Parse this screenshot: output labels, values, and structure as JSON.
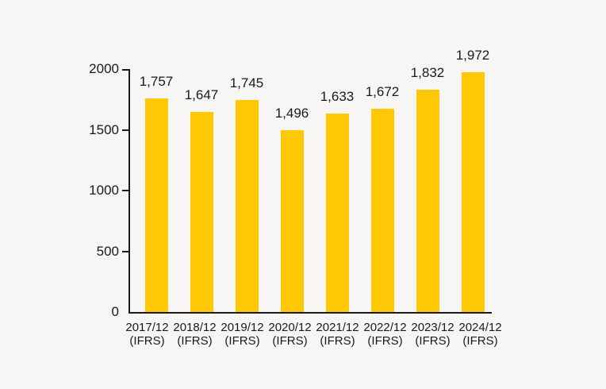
{
  "chart_data": {
    "type": "bar",
    "title": "",
    "xlabel": "",
    "ylabel": "",
    "categories": [
      {
        "period": "2017/12",
        "basis": "(IFRS)"
      },
      {
        "period": "2018/12",
        "basis": "(IFRS)"
      },
      {
        "period": "2019/12",
        "basis": "(IFRS)"
      },
      {
        "period": "2020/12",
        "basis": "(IFRS)"
      },
      {
        "period": "2021/12",
        "basis": "(IFRS)"
      },
      {
        "period": "2022/12",
        "basis": "(IFRS)"
      },
      {
        "period": "2023/12",
        "basis": "(IFRS)"
      },
      {
        "period": "2024/12",
        "basis": "(IFRS)"
      }
    ],
    "values": [
      1757,
      1647,
      1745,
      1496,
      1633,
      1672,
      1832,
      1972
    ],
    "value_labels": [
      "1,757",
      "1,647",
      "1,745",
      "1,496",
      "1,633",
      "1,672",
      "1,832",
      "1,972"
    ],
    "ylim": [
      0,
      2000
    ],
    "yticks": [
      0,
      500,
      1000,
      1500,
      2000
    ],
    "ytick_labels": [
      "0",
      "500",
      "1000",
      "1500",
      "2000"
    ],
    "grid": false,
    "legend": "none",
    "colors": {
      "bar": "#FFC805",
      "background": "#F7F6F4",
      "axis": "#1A1A1A",
      "text": "#1A1A1A"
    }
  }
}
